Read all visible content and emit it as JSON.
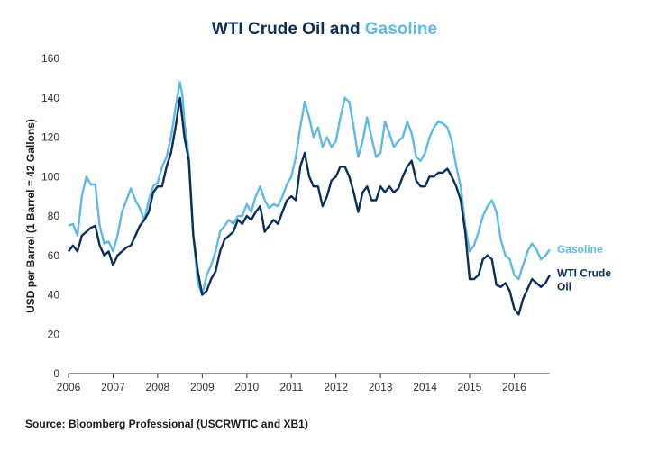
{
  "colors": {
    "wti": "#0d2f57",
    "gasoline": "#62b8e2",
    "axis": "#333333"
  },
  "source": "Source: Bloomberg Professional (USCRWTIC and XB1)",
  "chart_data": {
    "type": "line",
    "title_prefix": "WTI Crude Oil and ",
    "title_highlight": "Gasoline",
    "xlabel": "",
    "ylabel": "USD per Barrel (1 Barrel = 42 Gallons)",
    "xlim": [
      2006,
      2016.8
    ],
    "ylim": [
      0,
      160
    ],
    "x_ticks": [
      "2006",
      "2007",
      "2008",
      "2009",
      "2010",
      "2011",
      "2012",
      "2013",
      "2014",
      "2015",
      "2016"
    ],
    "y_ticks": [
      "0",
      "20",
      "40",
      "60",
      "80",
      "100",
      "120",
      "140",
      "160"
    ],
    "grid": false,
    "series": [
      {
        "name": "Gasoline",
        "legend_label": "Gasoline",
        "color": "#62b8e2",
        "points": [
          [
            2006.0,
            75
          ],
          [
            2006.1,
            76
          ],
          [
            2006.2,
            70
          ],
          [
            2006.3,
            90
          ],
          [
            2006.4,
            100
          ],
          [
            2006.5,
            96
          ],
          [
            2006.6,
            96
          ],
          [
            2006.7,
            75
          ],
          [
            2006.8,
            66
          ],
          [
            2006.9,
            67
          ],
          [
            2007.0,
            62
          ],
          [
            2007.1,
            70
          ],
          [
            2007.2,
            82
          ],
          [
            2007.3,
            88
          ],
          [
            2007.4,
            94
          ],
          [
            2007.5,
            88
          ],
          [
            2007.6,
            84
          ],
          [
            2007.7,
            78
          ],
          [
            2007.8,
            88
          ],
          [
            2007.9,
            95
          ],
          [
            2008.0,
            97
          ],
          [
            2008.1,
            105
          ],
          [
            2008.2,
            110
          ],
          [
            2008.3,
            120
          ],
          [
            2008.4,
            135
          ],
          [
            2008.5,
            148
          ],
          [
            2008.55,
            142
          ],
          [
            2008.6,
            128
          ],
          [
            2008.7,
            110
          ],
          [
            2008.8,
            70
          ],
          [
            2008.9,
            46
          ],
          [
            2009.0,
            40
          ],
          [
            2009.1,
            50
          ],
          [
            2009.2,
            55
          ],
          [
            2009.3,
            62
          ],
          [
            2009.4,
            72
          ],
          [
            2009.5,
            75
          ],
          [
            2009.6,
            78
          ],
          [
            2009.7,
            76
          ],
          [
            2009.8,
            80
          ],
          [
            2009.9,
            80
          ],
          [
            2010.0,
            86
          ],
          [
            2010.1,
            82
          ],
          [
            2010.2,
            90
          ],
          [
            2010.3,
            95
          ],
          [
            2010.4,
            88
          ],
          [
            2010.5,
            84
          ],
          [
            2010.6,
            86
          ],
          [
            2010.7,
            85
          ],
          [
            2010.8,
            90
          ],
          [
            2010.9,
            96
          ],
          [
            2011.0,
            100
          ],
          [
            2011.1,
            110
          ],
          [
            2011.2,
            125
          ],
          [
            2011.3,
            138
          ],
          [
            2011.4,
            130
          ],
          [
            2011.5,
            120
          ],
          [
            2011.6,
            125
          ],
          [
            2011.7,
            115
          ],
          [
            2011.8,
            120
          ],
          [
            2011.9,
            115
          ],
          [
            2012.0,
            118
          ],
          [
            2012.1,
            130
          ],
          [
            2012.2,
            140
          ],
          [
            2012.3,
            138
          ],
          [
            2012.4,
            125
          ],
          [
            2012.5,
            110
          ],
          [
            2012.6,
            118
          ],
          [
            2012.7,
            130
          ],
          [
            2012.8,
            120
          ],
          [
            2012.9,
            110
          ],
          [
            2013.0,
            112
          ],
          [
            2013.1,
            128
          ],
          [
            2013.2,
            122
          ],
          [
            2013.3,
            115
          ],
          [
            2013.4,
            118
          ],
          [
            2013.5,
            120
          ],
          [
            2013.6,
            128
          ],
          [
            2013.7,
            122
          ],
          [
            2013.8,
            110
          ],
          [
            2013.9,
            108
          ],
          [
            2014.0,
            112
          ],
          [
            2014.1,
            120
          ],
          [
            2014.2,
            125
          ],
          [
            2014.3,
            128
          ],
          [
            2014.4,
            127
          ],
          [
            2014.5,
            125
          ],
          [
            2014.6,
            118
          ],
          [
            2014.7,
            105
          ],
          [
            2014.8,
            95
          ],
          [
            2014.9,
            75
          ],
          [
            2015.0,
            62
          ],
          [
            2015.1,
            65
          ],
          [
            2015.2,
            72
          ],
          [
            2015.3,
            80
          ],
          [
            2015.4,
            85
          ],
          [
            2015.5,
            88
          ],
          [
            2015.6,
            82
          ],
          [
            2015.7,
            68
          ],
          [
            2015.8,
            60
          ],
          [
            2015.9,
            58
          ],
          [
            2016.0,
            50
          ],
          [
            2016.1,
            48
          ],
          [
            2016.2,
            55
          ],
          [
            2016.3,
            62
          ],
          [
            2016.4,
            66
          ],
          [
            2016.5,
            63
          ],
          [
            2016.6,
            58
          ],
          [
            2016.7,
            60
          ],
          [
            2016.8,
            63
          ]
        ]
      },
      {
        "name": "WTI Crude Oil",
        "legend_label_1": "WTI Crude",
        "legend_label_2": "Oil",
        "color": "#0d2f57",
        "points": [
          [
            2006.0,
            62
          ],
          [
            2006.1,
            65
          ],
          [
            2006.2,
            62
          ],
          [
            2006.3,
            70
          ],
          [
            2006.4,
            72
          ],
          [
            2006.5,
            74
          ],
          [
            2006.6,
            75
          ],
          [
            2006.7,
            65
          ],
          [
            2006.8,
            60
          ],
          [
            2006.9,
            62
          ],
          [
            2007.0,
            55
          ],
          [
            2007.1,
            60
          ],
          [
            2007.2,
            62
          ],
          [
            2007.3,
            64
          ],
          [
            2007.4,
            65
          ],
          [
            2007.5,
            70
          ],
          [
            2007.6,
            75
          ],
          [
            2007.7,
            78
          ],
          [
            2007.8,
            82
          ],
          [
            2007.9,
            92
          ],
          [
            2008.0,
            95
          ],
          [
            2008.1,
            95
          ],
          [
            2008.2,
            105
          ],
          [
            2008.3,
            112
          ],
          [
            2008.4,
            125
          ],
          [
            2008.5,
            140
          ],
          [
            2008.55,
            130
          ],
          [
            2008.6,
            120
          ],
          [
            2008.7,
            108
          ],
          [
            2008.8,
            70
          ],
          [
            2008.9,
            52
          ],
          [
            2009.0,
            40
          ],
          [
            2009.1,
            42
          ],
          [
            2009.2,
            48
          ],
          [
            2009.3,
            52
          ],
          [
            2009.4,
            62
          ],
          [
            2009.5,
            68
          ],
          [
            2009.6,
            70
          ],
          [
            2009.7,
            72
          ],
          [
            2009.8,
            78
          ],
          [
            2009.9,
            76
          ],
          [
            2010.0,
            80
          ],
          [
            2010.1,
            78
          ],
          [
            2010.2,
            82
          ],
          [
            2010.3,
            85
          ],
          [
            2010.4,
            72
          ],
          [
            2010.5,
            75
          ],
          [
            2010.6,
            78
          ],
          [
            2010.7,
            76
          ],
          [
            2010.8,
            82
          ],
          [
            2010.9,
            88
          ],
          [
            2011.0,
            90
          ],
          [
            2011.1,
            88
          ],
          [
            2011.2,
            105
          ],
          [
            2011.3,
            112
          ],
          [
            2011.4,
            100
          ],
          [
            2011.5,
            95
          ],
          [
            2011.6,
            95
          ],
          [
            2011.7,
            85
          ],
          [
            2011.8,
            90
          ],
          [
            2011.9,
            98
          ],
          [
            2012.0,
            100
          ],
          [
            2012.1,
            105
          ],
          [
            2012.2,
            105
          ],
          [
            2012.3,
            100
          ],
          [
            2012.4,
            92
          ],
          [
            2012.5,
            82
          ],
          [
            2012.6,
            92
          ],
          [
            2012.7,
            95
          ],
          [
            2012.8,
            88
          ],
          [
            2012.9,
            88
          ],
          [
            2013.0,
            95
          ],
          [
            2013.1,
            92
          ],
          [
            2013.2,
            95
          ],
          [
            2013.3,
            92
          ],
          [
            2013.4,
            94
          ],
          [
            2013.5,
            100
          ],
          [
            2013.6,
            105
          ],
          [
            2013.7,
            108
          ],
          [
            2013.8,
            98
          ],
          [
            2013.9,
            95
          ],
          [
            2014.0,
            95
          ],
          [
            2014.1,
            100
          ],
          [
            2014.2,
            100
          ],
          [
            2014.3,
            102
          ],
          [
            2014.4,
            102
          ],
          [
            2014.5,
            104
          ],
          [
            2014.6,
            100
          ],
          [
            2014.7,
            95
          ],
          [
            2014.8,
            88
          ],
          [
            2014.9,
            72
          ],
          [
            2015.0,
            48
          ],
          [
            2015.1,
            48
          ],
          [
            2015.2,
            50
          ],
          [
            2015.3,
            58
          ],
          [
            2015.4,
            60
          ],
          [
            2015.5,
            58
          ],
          [
            2015.6,
            45
          ],
          [
            2015.7,
            44
          ],
          [
            2015.8,
            46
          ],
          [
            2015.9,
            42
          ],
          [
            2016.0,
            33
          ],
          [
            2016.1,
            30
          ],
          [
            2016.2,
            38
          ],
          [
            2016.3,
            43
          ],
          [
            2016.4,
            48
          ],
          [
            2016.5,
            46
          ],
          [
            2016.6,
            44
          ],
          [
            2016.7,
            46
          ],
          [
            2016.8,
            50
          ]
        ]
      }
    ]
  }
}
